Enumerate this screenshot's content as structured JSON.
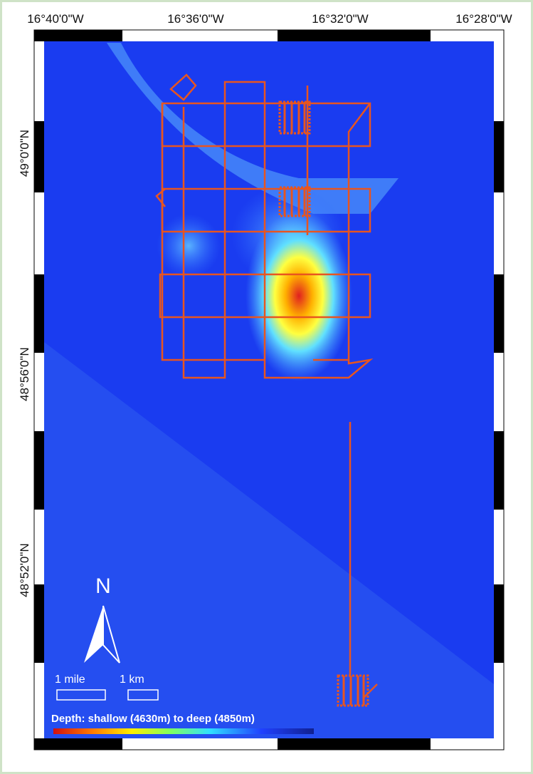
{
  "axes": {
    "top_labels": [
      "16°40'0\"W",
      "16°36'0\"W",
      "16°32'0\"W",
      "16°28'0\"W"
    ],
    "left_labels": [
      "49°0'0\"N",
      "48°56'0\"N",
      "48°52'0\"N"
    ]
  },
  "north": "N",
  "scale": {
    "mile": "1 mile",
    "km": "1 km"
  },
  "legend": "Depth: shallow (4630m) to deep (4850m)"
}
